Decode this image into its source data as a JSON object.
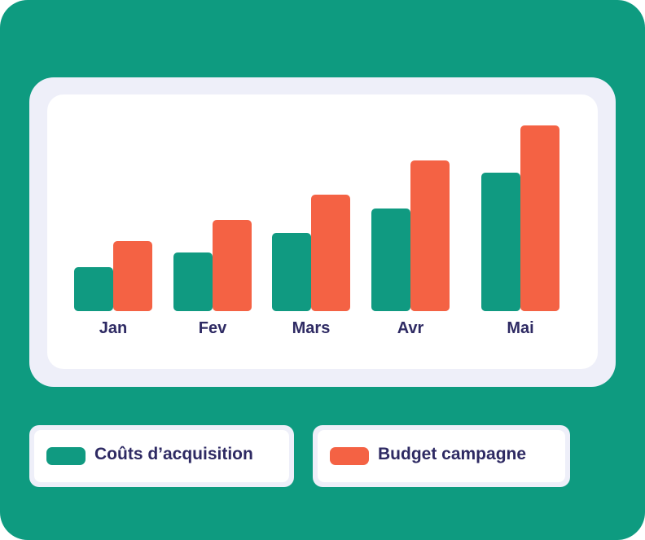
{
  "colors": {
    "background": "#0e9b80",
    "series_1": "#109a81",
    "series_2": "#f46244",
    "label_text": "#2e2a63"
  },
  "legend": {
    "items": [
      {
        "label": "Coûts d’acquisition",
        "color": "#109a81"
      },
      {
        "label": "Budget campagne",
        "color": "#f46244"
      }
    ]
  },
  "chart_data": {
    "type": "bar",
    "categories": [
      "Jan",
      "Fev",
      "Mars",
      "Avr",
      "Mai"
    ],
    "series": [
      {
        "name": "Coûts d’acquisition",
        "values": [
          54,
          72,
          96,
          126,
          170
        ]
      },
      {
        "name": "Budget campagne",
        "values": [
          86,
          112,
          143,
          185,
          228
        ]
      }
    ],
    "title": "",
    "xlabel": "",
    "ylabel": "",
    "ylim": [
      0,
      240
    ],
    "grid": false,
    "legend_position": "bottom"
  }
}
